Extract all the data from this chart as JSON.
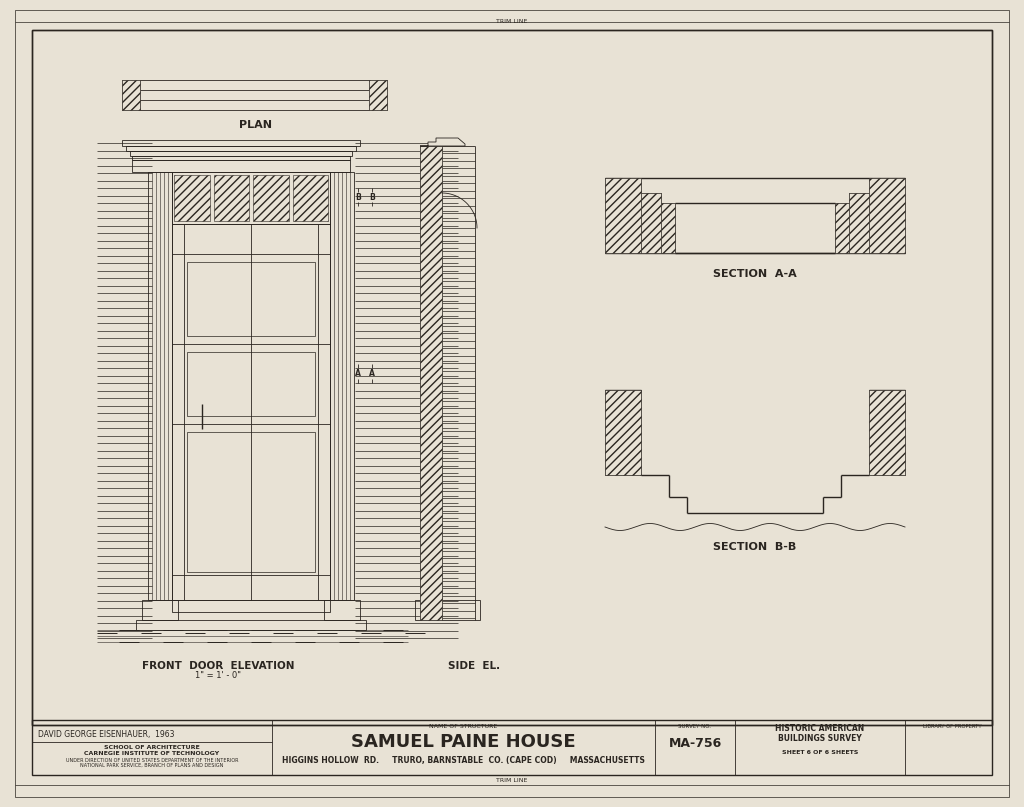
{
  "bg_color": "#e8e2d5",
  "line_color": "#2a2520",
  "title_main": "SAMUEL PAINE HOUSE",
  "title_sub": "HIGGINS HOLLOW  RD.     TRURO, BARNSTABLE  CO. (CAPE COD)     MASSACHUSETTS",
  "survey_no": "MA-756",
  "sheet": "SHEET 6 OF 6 SHEETS",
  "survey_label": "HISTORIC AMERICAN\nBUILDINGS SURVEY",
  "school_line1": "SCHOOL OF ARCHITECTURE",
  "school_line2": "CARNEGIE INSTITUTE OF TECHNOLOGY",
  "school_line3": "UNDER DIRECTION OF UNITED STATES DEPARTMENT OF THE INTERIOR",
  "school_line4": "NATIONAL PARK SERVICE, BRANCH OF PLANS AND DESIGN",
  "author": "DAVID GEORGE EISENHAUER,  1963",
  "label_plan": "PLAN",
  "label_front": "FRONT  DOOR  ELEVATION",
  "label_scale": "1\" = 1' - 0\"",
  "label_side": "SIDE  EL.",
  "label_section_aa": "SECTION  A-A",
  "label_section_bb": "SECTION  B-B",
  "trim_line": "TRIM LINE",
  "name_of_structure": "NAME OF STRUCTURE",
  "survey_no_label": "SURVEY NO.",
  "library_label": "LIBRARY OF PROPERTY"
}
